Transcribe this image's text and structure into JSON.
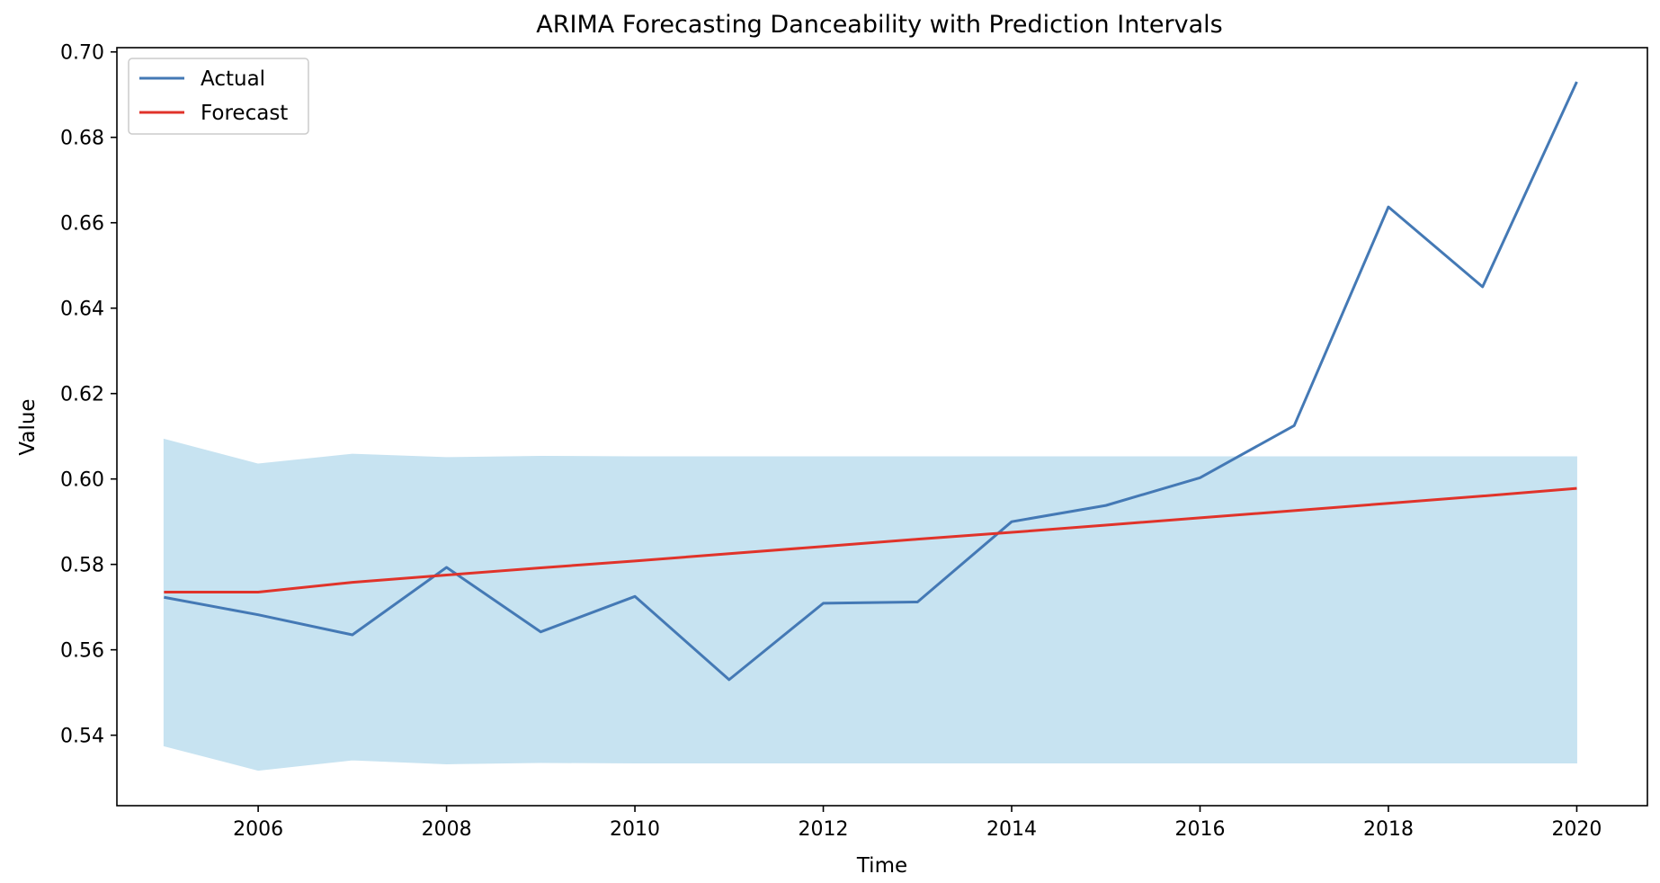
{
  "chart_data": {
    "type": "line",
    "title": "ARIMA Forecasting Danceability with Prediction Intervals",
    "xlabel": "Time",
    "ylabel": "Value",
    "x": [
      2005,
      2006,
      2007,
      2008,
      2009,
      2010,
      2011,
      2012,
      2013,
      2014,
      2015,
      2016,
      2017,
      2018,
      2019,
      2020
    ],
    "xlim": [
      2004.5,
      2020.75
    ],
    "ylim": [
      0.5235,
      0.701
    ],
    "xticks": [
      2006,
      2008,
      2010,
      2012,
      2014,
      2016,
      2018,
      2020
    ],
    "xtick_labels": [
      "2006",
      "2008",
      "2010",
      "2012",
      "2014",
      "2016",
      "2018",
      "2020"
    ],
    "yticks": [
      0.54,
      0.56,
      0.58,
      0.6,
      0.62,
      0.64,
      0.66,
      0.68,
      0.7
    ],
    "ytick_labels": [
      "0.54",
      "0.56",
      "0.58",
      "0.60",
      "0.62",
      "0.64",
      "0.66",
      "0.68",
      "0.70"
    ],
    "grid": false,
    "legend_position": "upper-left",
    "series": [
      {
        "name": "Actual",
        "color": "#4479b5",
        "values": [
          0.5723,
          0.5682,
          0.5635,
          0.5793,
          0.5642,
          0.5725,
          0.553,
          0.5709,
          0.5712,
          0.59,
          0.5938,
          0.6003,
          0.6125,
          0.6637,
          0.645,
          0.693
        ]
      },
      {
        "name": "Forecast",
        "color": "#e0332a",
        "values": [
          0.5735,
          0.5735,
          0.5758,
          0.5775,
          0.5792,
          0.5808,
          0.5825,
          0.5842,
          0.5859,
          0.5875,
          0.5892,
          0.5909,
          0.5926,
          0.5943,
          0.596,
          0.5978
        ]
      }
    ],
    "interval": {
      "color": "#c7e3f1",
      "lower": [
        0.5375,
        0.5318,
        0.5342,
        0.5333,
        0.5336,
        0.5335,
        0.5335,
        0.5335,
        0.5335,
        0.5335,
        0.5335,
        0.5335,
        0.5335,
        0.5335,
        0.5335,
        0.5335
      ],
      "upper": [
        0.6093,
        0.6035,
        0.6058,
        0.605,
        0.6053,
        0.6052,
        0.6052,
        0.6052,
        0.6052,
        0.6052,
        0.6052,
        0.6052,
        0.6052,
        0.6052,
        0.6052,
        0.6052
      ]
    }
  }
}
